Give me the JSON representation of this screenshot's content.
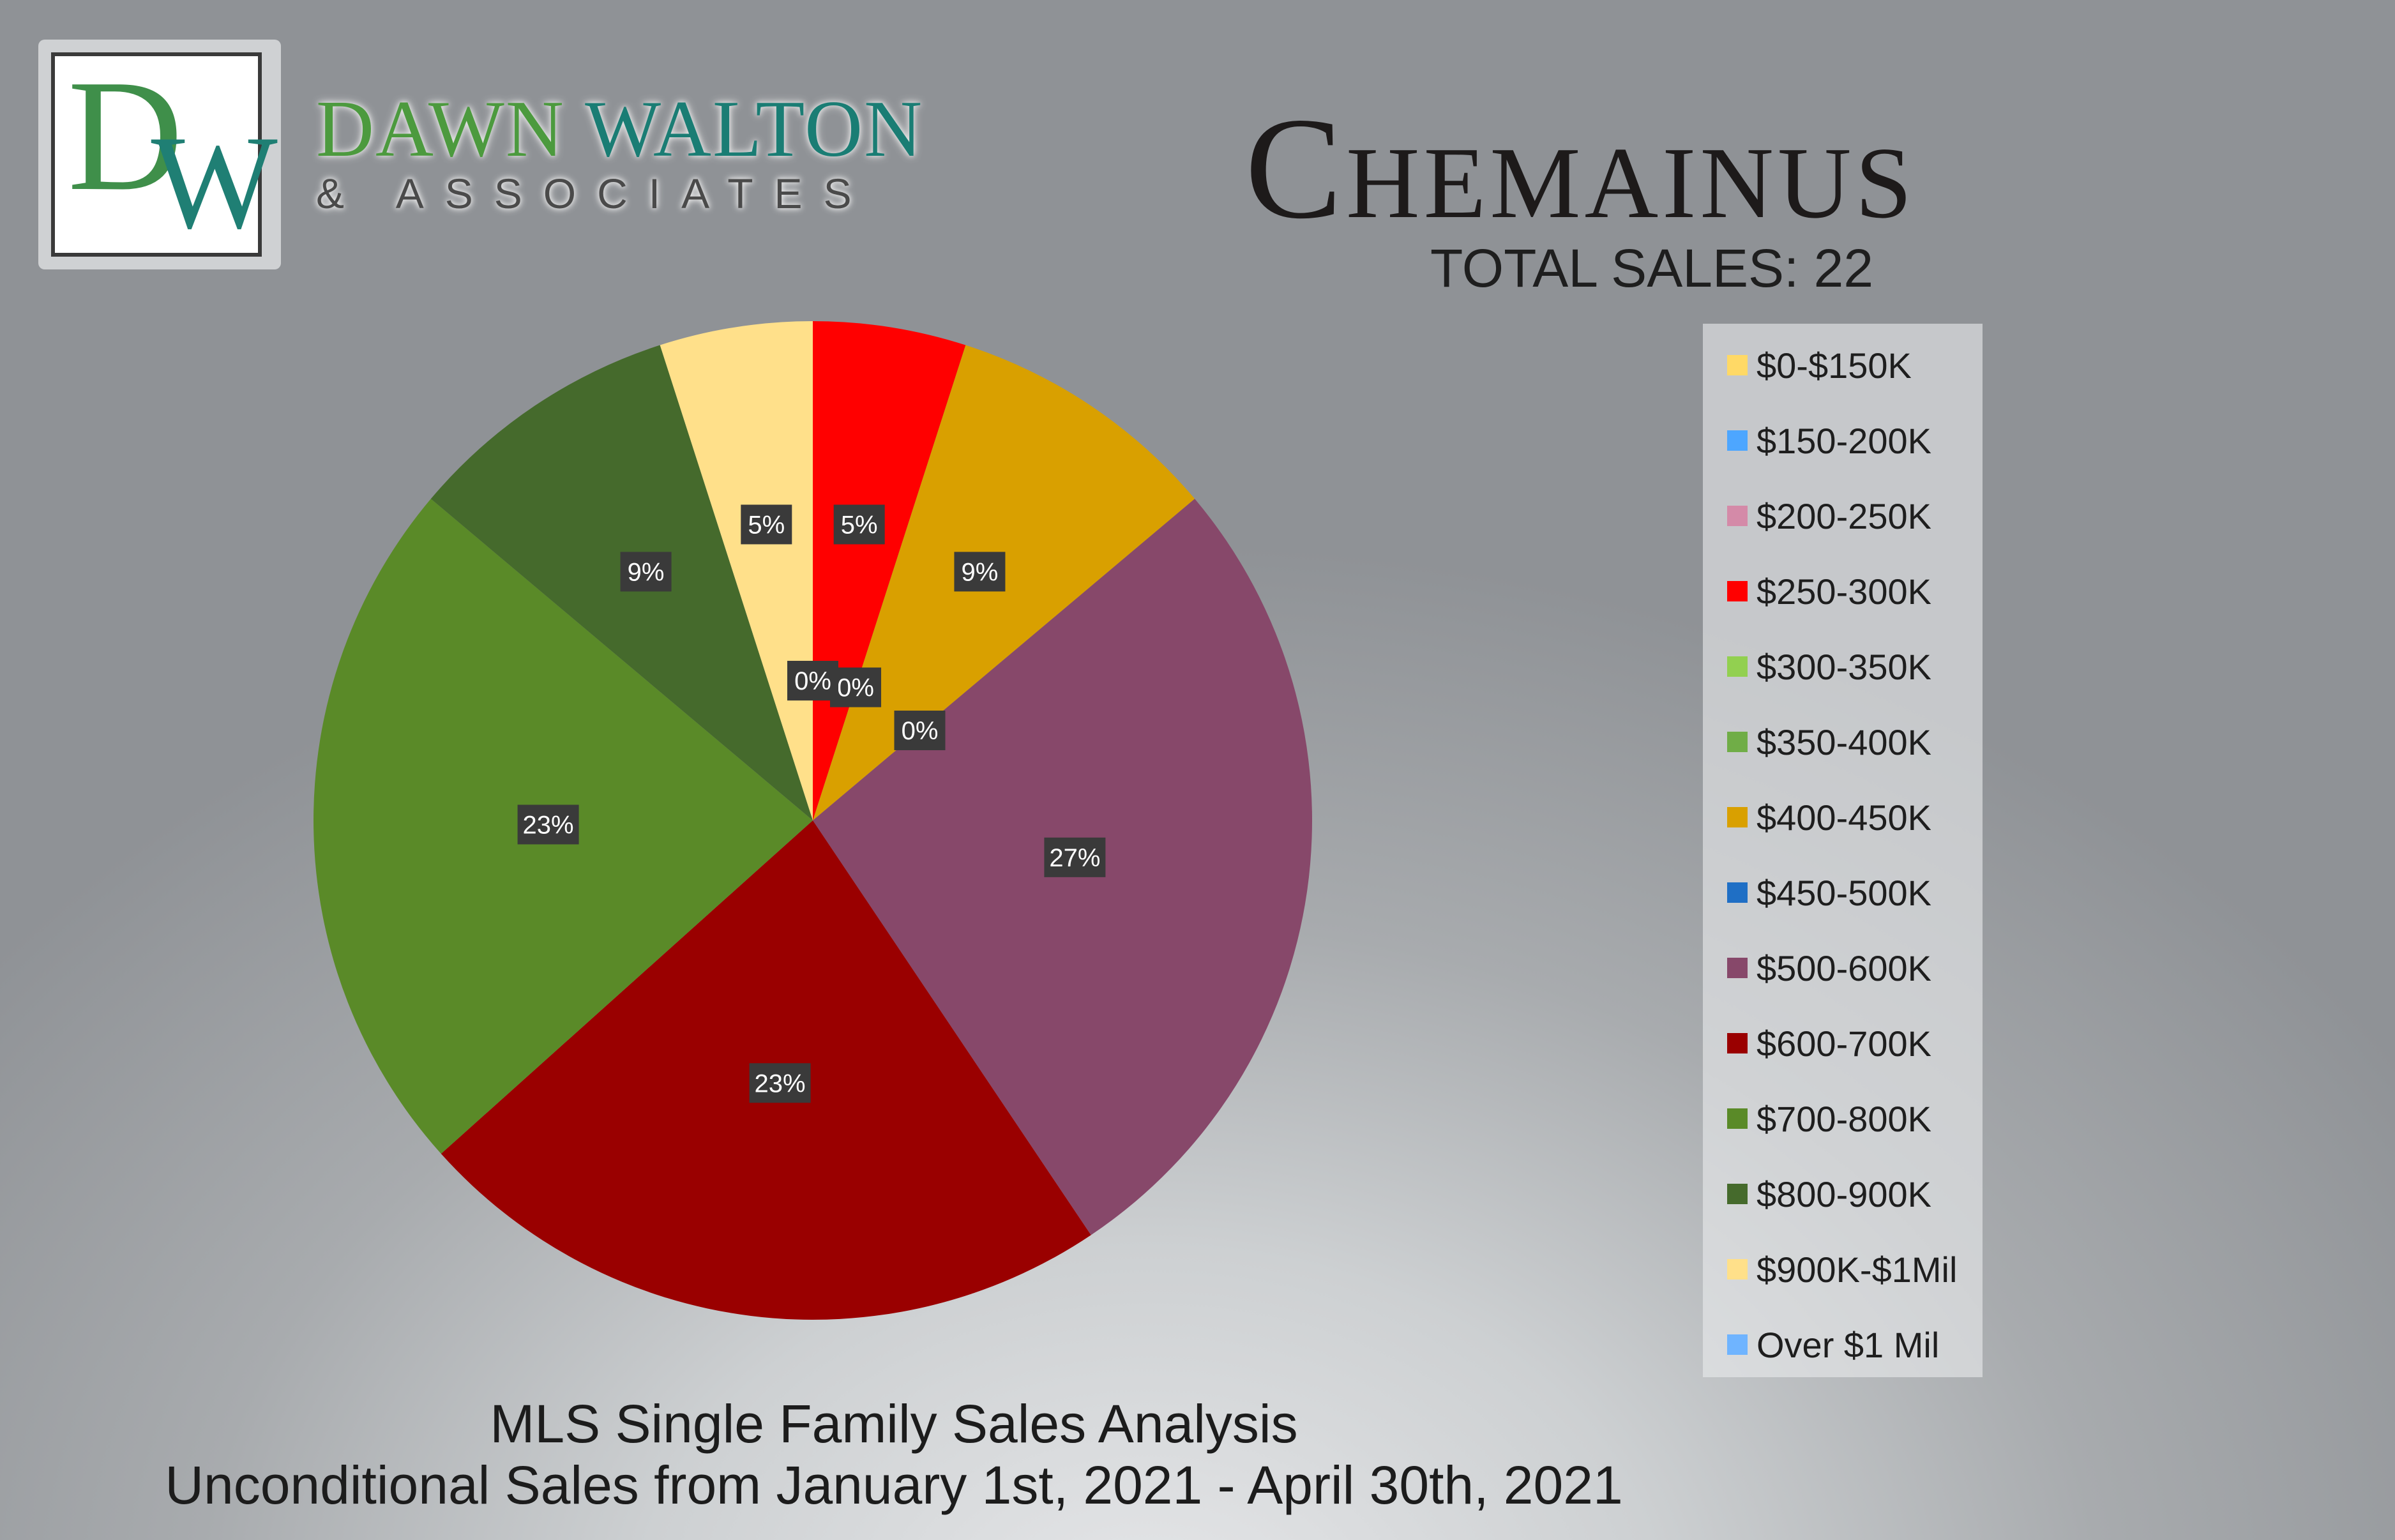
{
  "brand": {
    "monogram_d": "D",
    "monogram_w": "W",
    "name_part1": "DAWN",
    "name_part2": "WALTON",
    "subtitle": "& ASSOCIATES"
  },
  "header": {
    "title": "Chemainus",
    "total_sales": "TOTAL SALES: 22"
  },
  "footer": {
    "line1": "MLS Single Family Sales Analysis",
    "line2": "Unconditional Sales from January 1st, 2021 - April 30th, 2021"
  },
  "chart_data": {
    "type": "pie",
    "title": "Chemainus",
    "legend_position": "right",
    "categories": [
      "$0-$150K",
      "$150-200K",
      "$200-250K",
      "$250-300K",
      "$300-350K",
      "$350-400K",
      "$400-450K",
      "$450-500K",
      "$500-600K",
      "$600-700K",
      "$700-800K",
      "$800-900K",
      "$900K-$1Mil",
      "Over $1 Mil"
    ],
    "values": [
      0,
      0,
      0,
      5,
      0,
      0,
      9,
      0,
      27,
      23,
      23,
      9,
      5,
      0
    ],
    "labels": [
      "0%",
      "0%",
      "0%",
      "5%",
      "0%",
      "0%",
      "9%",
      "0%",
      "27%",
      "23%",
      "23%",
      "9%",
      "5%",
      "0%"
    ],
    "colors": [
      "#ffd966",
      "#4da6ff",
      "#d48aa8",
      "#ff0000",
      "#92d050",
      "#70ad47",
      "#d9a000",
      "#1f6fc5",
      "#87486a",
      "#9a0000",
      "#5a8a28",
      "#456a2c",
      "#ffe08a",
      "#6fb4ff"
    ]
  }
}
